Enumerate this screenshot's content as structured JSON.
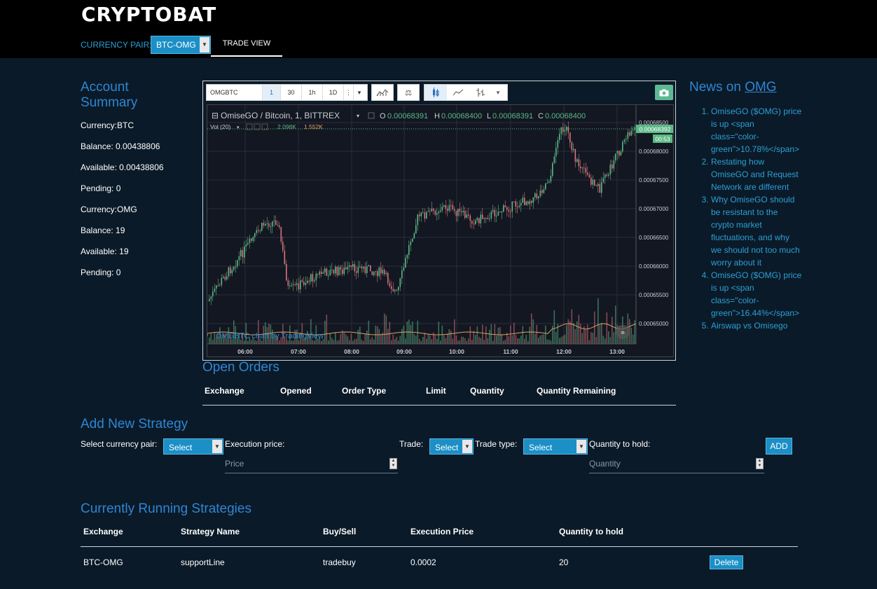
{
  "app": {
    "brand": "CRYPTOBAT"
  },
  "header": {
    "pair_label": "CURRENCY PAIR:",
    "pair_value": "BTC-OMG",
    "tab_label": "TRADE VIEW"
  },
  "account": {
    "title_line1": "Account",
    "title_line2": "Summary",
    "lines": [
      "Currency:BTC",
      "Balance: 0.00438806",
      "Available: 0.00438806",
      "Pending: 0",
      "Currency:OMG",
      "Balance: 19",
      "Available: 19",
      "Pending: 0"
    ]
  },
  "tradingview": {
    "symbol_field": "OMGBTC",
    "intervals": [
      "1",
      "30",
      "1h",
      "1D"
    ],
    "legend_title": "OmiseGO / Bitcoin, 1, BITTREX",
    "ohlc": {
      "o": "0.00068391",
      "h": "0.00068400",
      "l": "0.00068391",
      "c": "0.00068400"
    },
    "vol_label": "Vol (20)",
    "vol_values": [
      "2.098K",
      "1.552K"
    ],
    "price_ticks": [
      "0.00068500",
      "0.00068000",
      "0.00067500",
      "0.00067000",
      "0.00066500",
      "0.00066000",
      "0.00065500",
      "0.00065000"
    ],
    "last_price": "0.00068392",
    "countdown": "00:53",
    "time_ticks": [
      "06:00",
      "07:00",
      "08:00",
      "09:00",
      "10:00",
      "11:00",
      "12:00",
      "13:00"
    ],
    "watermark": "OMGBTC chart by TradingView",
    "up_color": "#5cb885",
    "down_color": "#d9737b",
    "bg_color": "#131722"
  },
  "news": {
    "title_prefix": "News on ",
    "title_link": "OMG",
    "items": [
      "OmiseGO ($OMG) price is up <span class=\"color-green\">10.78%</span>",
      "Restating how OmiseGO and Request Network are different",
      "Why OmiseGO should be resistant to the crypto market fluctuations, and why we should not too much worry about it",
      "OmiseGO ($OMG) price is up <span class=\"color-green\">16.44%</span>",
      "Airswap vs Omisego"
    ]
  },
  "open_orders": {
    "title": "Open Orders",
    "columns": [
      "Exchange",
      "Opened",
      "Order Type",
      "Limit",
      "Quantity",
      "Quantity Remaining"
    ]
  },
  "strategy_form": {
    "title": "Add New Strategy",
    "pair_label": "Select currency pair:",
    "pair_value": "Select",
    "exec_label": "Execution price:",
    "exec_placeholder": "Price",
    "trade_label": "Trade:",
    "trade_value": "Select",
    "trade_type_label": "Trade type:",
    "trade_type_value": "Select",
    "qty_label": "Quantity to hold:",
    "qty_placeholder": "Quantity",
    "add_label": "ADD"
  },
  "running": {
    "title": "Currently Running Strategies",
    "columns": [
      "Exchange",
      "Strategy Name",
      "Buy/Sell",
      "Execution Price",
      "Quantity to hold"
    ],
    "rows": [
      {
        "exchange": "BTC-OMG",
        "name": "supportLine",
        "side": "tradebuy",
        "price": "0.0002",
        "qty": "20",
        "action": "Delete"
      }
    ]
  }
}
